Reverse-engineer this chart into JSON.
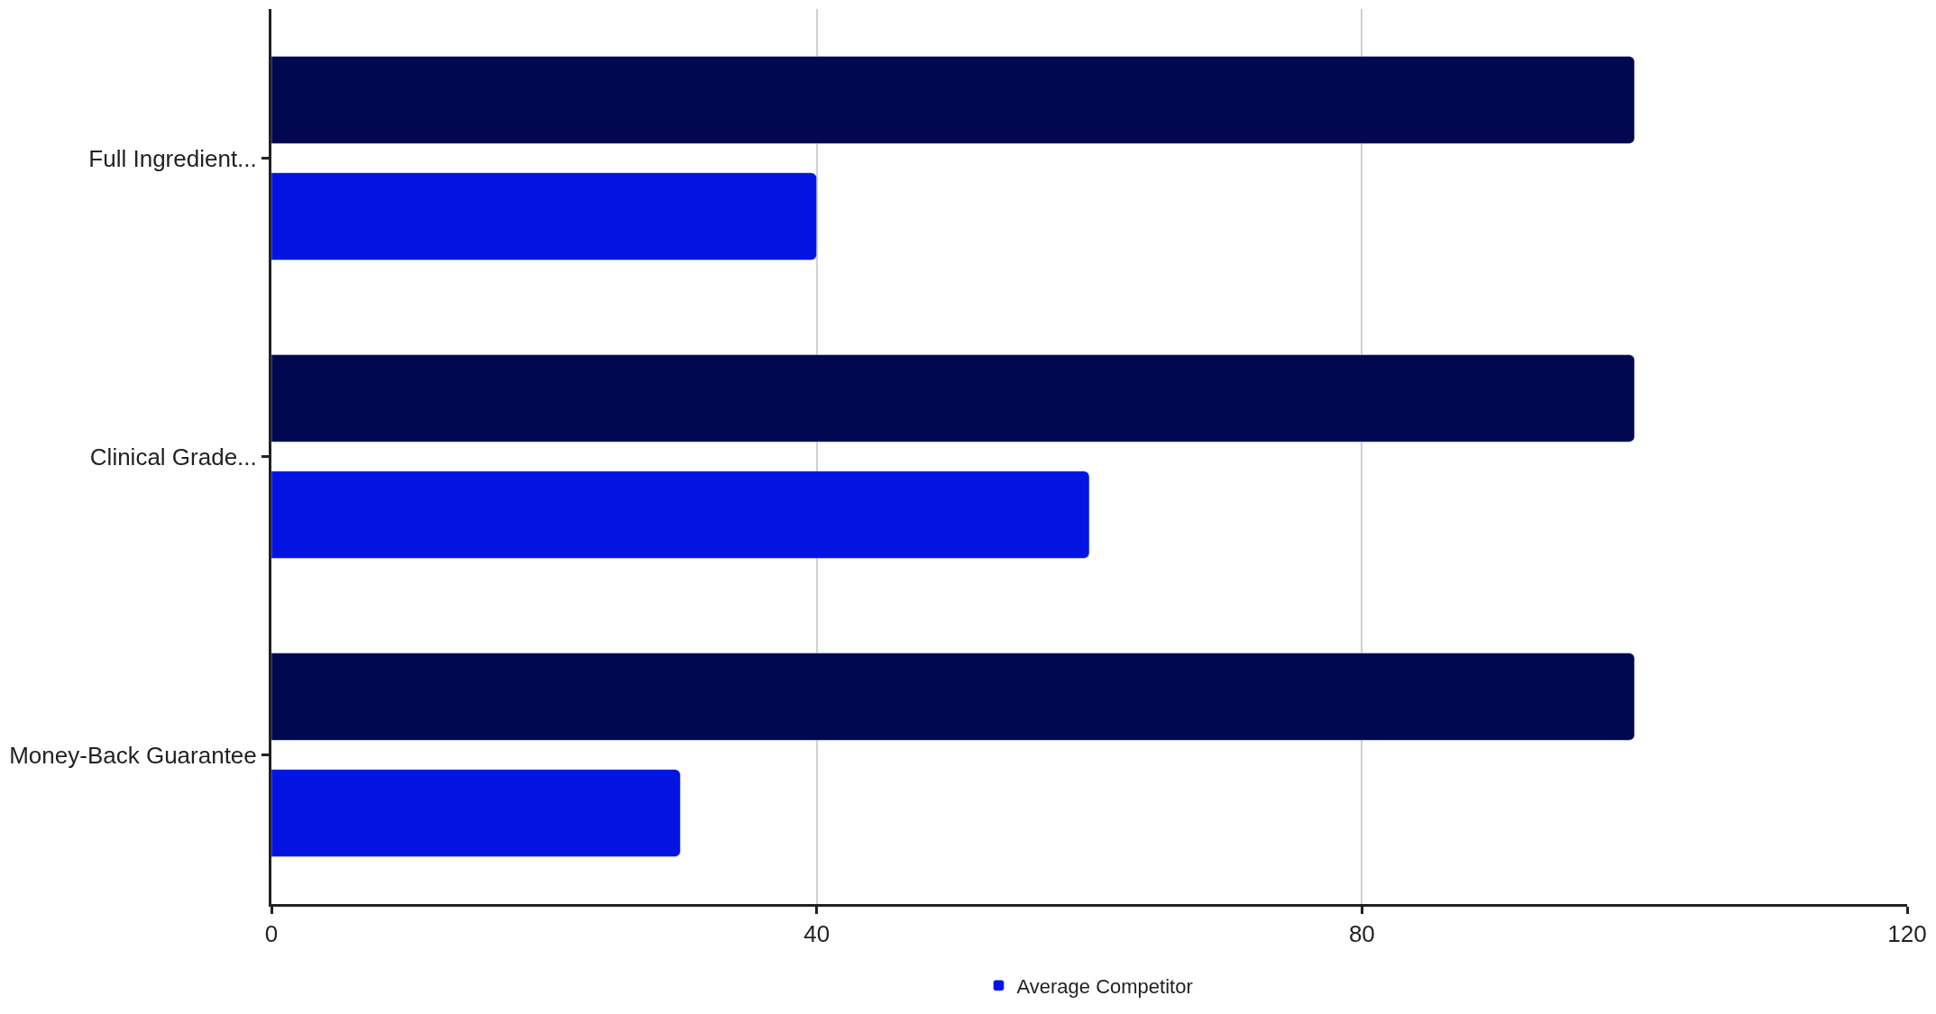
{
  "chart_data": {
    "type": "bar",
    "orientation": "horizontal",
    "categories": [
      "Full Ingredient...",
      "Clinical Grade...",
      "Money-Back Guarantee"
    ],
    "series": [
      {
        "color": "#020850",
        "values": [
          100,
          100,
          100
        ]
      },
      {
        "name": "Average Competitor",
        "color": "#0314e2",
        "values": [
          40,
          60,
          30
        ]
      }
    ],
    "xlim": [
      0,
      120
    ],
    "xticks": [
      0,
      40,
      80,
      120
    ],
    "grid": "x",
    "legend": "bottom"
  }
}
